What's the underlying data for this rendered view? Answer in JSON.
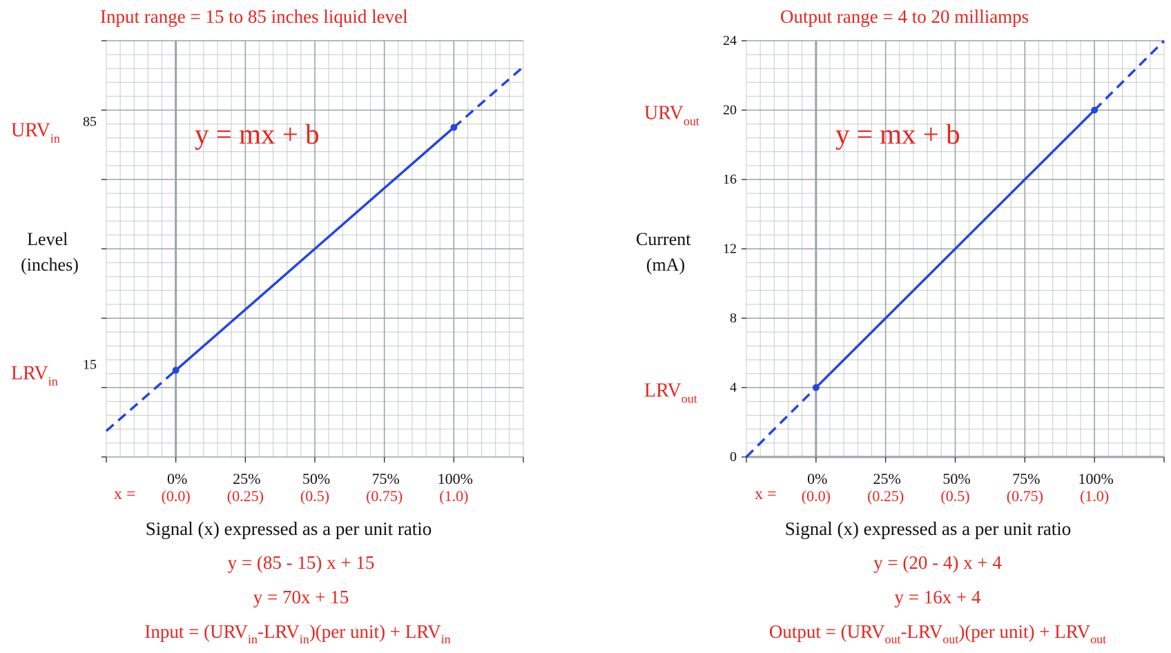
{
  "colors": {
    "red": "#e8251f",
    "line": "#2346e0",
    "grid_minor": "#c4c9cc",
    "grid_major": "#9aa3a6"
  },
  "chart_data": [
    {
      "type": "line",
      "title": "Input range = 15 to 85 inches liquid level",
      "equation": "y = mx + b",
      "ylabel": [
        "Level",
        "(inches)"
      ],
      "xlabel": "Signal (x) expressed as a per unit ratio",
      "x_prefix": "x =",
      "ylim": [
        -10,
        110
      ],
      "xlim": [
        -0.25,
        1.25
      ],
      "x_ticks": [
        {
          "x": 0,
          "pct": "0%",
          "ratio": "(0.0)"
        },
        {
          "x": 0.25,
          "pct": "25%",
          "ratio": "(0.25)"
        },
        {
          "x": 0.5,
          "pct": "50%",
          "ratio": "(0.5)"
        },
        {
          "x": 0.75,
          "pct": "75%",
          "ratio": "(0.75)"
        },
        {
          "x": 1,
          "pct": "100%",
          "ratio": "(1.0)"
        }
      ],
      "y_ticks": [
        {
          "y": 15,
          "label": "15",
          "side_label": "LRV",
          "side_sub": "in"
        },
        {
          "y": 85,
          "label": "85",
          "side_label": "URV",
          "side_sub": "in"
        }
      ],
      "y_gridlines": [
        -10,
        10,
        30,
        50,
        70,
        90,
        110
      ],
      "series": [
        {
          "x": [
            -0.25,
            0,
            1,
            1.25
          ],
          "y": [
            -2.5,
            15,
            85,
            102.5
          ],
          "solid_range": [
            0,
            1
          ]
        }
      ],
      "points": [
        {
          "x": 0,
          "y": 15
        },
        {
          "x": 1,
          "y": 85
        }
      ],
      "formulas": [
        "y = (85 - 15) x  +  15",
        "y = 70x + 15"
      ],
      "general_formula": {
        "lhs": "Input = (URV",
        "sub1": "in",
        "mid": "-LRV",
        "sub2": "in",
        "rest": ")(per unit) + LRV",
        "sub3": "in"
      }
    },
    {
      "type": "line",
      "title": "Output range = 4 to 20 milliamps",
      "equation": "y = mx + b",
      "ylabel": [
        "Current",
        "(mA)"
      ],
      "xlabel": "Signal (x) expressed as a per unit ratio",
      "x_prefix": "x =",
      "ylim": [
        0,
        24
      ],
      "xlim": [
        -0.25,
        1.25
      ],
      "x_ticks": [
        {
          "x": 0,
          "pct": "0%",
          "ratio": "(0.0)"
        },
        {
          "x": 0.25,
          "pct": "25%",
          "ratio": "(0.25)"
        },
        {
          "x": 0.5,
          "pct": "50%",
          "ratio": "(0.5)"
        },
        {
          "x": 0.75,
          "pct": "75%",
          "ratio": "(0.75)"
        },
        {
          "x": 1,
          "pct": "100%",
          "ratio": "(1.0)"
        }
      ],
      "y_ticks": [
        {
          "y": 0,
          "label": "0"
        },
        {
          "y": 4,
          "label": "4",
          "side_label": "LRV",
          "side_sub": "out"
        },
        {
          "y": 8,
          "label": "8"
        },
        {
          "y": 12,
          "label": "12"
        },
        {
          "y": 16,
          "label": "16"
        },
        {
          "y": 20,
          "label": "20",
          "side_label": "URV",
          "side_sub": "out"
        },
        {
          "y": 24,
          "label": "24"
        }
      ],
      "y_gridlines": [
        0,
        4,
        8,
        12,
        16,
        20,
        24
      ],
      "series": [
        {
          "x": [
            -0.25,
            0,
            1,
            1.25
          ],
          "y": [
            0,
            4,
            20,
            24
          ],
          "solid_range": [
            0,
            1
          ]
        }
      ],
      "points": [
        {
          "x": 0,
          "y": 4
        },
        {
          "x": 1,
          "y": 20
        }
      ],
      "formulas": [
        "y = (20 - 4) x  +  4",
        "y = 16x + 4"
      ],
      "general_formula": {
        "lhs": "Output = (URV",
        "sub1": "out",
        "mid": "-LRV",
        "sub2": "out",
        "rest": ")(per unit) + LRV",
        "sub3": "out"
      }
    }
  ]
}
